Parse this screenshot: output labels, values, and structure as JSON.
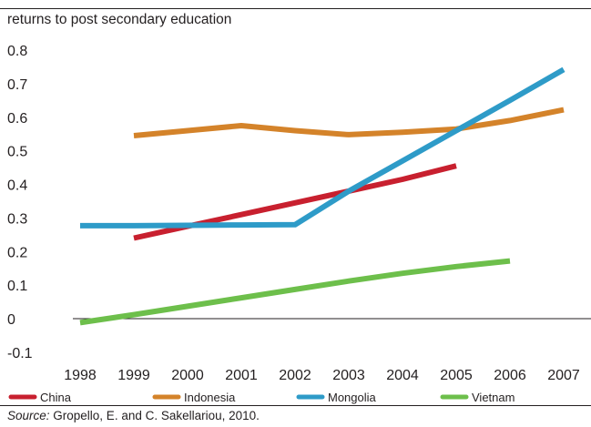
{
  "chart_data": {
    "type": "line",
    "title": "",
    "ylabel": "returns to post secondary education",
    "xlabel": "",
    "x": [
      "1998",
      "1999",
      "2000",
      "2001",
      "2002",
      "2003",
      "2004",
      "2005",
      "2006",
      "2007"
    ],
    "yticks": [
      "0.8",
      "0.7",
      "0.6",
      "0.5",
      "0.4",
      "0.3",
      "0.2",
      "0.1",
      "0",
      "-0.1"
    ],
    "ylim": [
      -0.1,
      0.8
    ],
    "grid": false,
    "legend_position": "bottom",
    "series": [
      {
        "name": "China",
        "color": "#c8202f",
        "values": [
          null,
          0.24,
          0.275,
          0.31,
          0.345,
          0.38,
          0.415,
          0.455,
          null,
          null
        ]
      },
      {
        "name": "Indonesia",
        "color": "#d4832a",
        "values": [
          null,
          0.545,
          0.56,
          0.575,
          0.56,
          0.548,
          0.555,
          0.565,
          0.59,
          0.622
        ]
      },
      {
        "name": "Mongolia",
        "color": "#2e9bc8",
        "values": [
          0.277,
          0.277,
          0.278,
          0.279,
          0.28,
          0.38,
          0.47,
          0.56,
          0.65,
          0.742
        ]
      },
      {
        "name": "Vietnam",
        "color": "#6dbf4b",
        "values": [
          -0.012,
          0.012,
          0.037,
          0.062,
          0.087,
          0.112,
          0.135,
          0.155,
          0.172,
          null
        ]
      }
    ]
  },
  "source": {
    "prefix": "Source:",
    "text": " Gropello, E. and C. Sakellariou, 2010."
  }
}
